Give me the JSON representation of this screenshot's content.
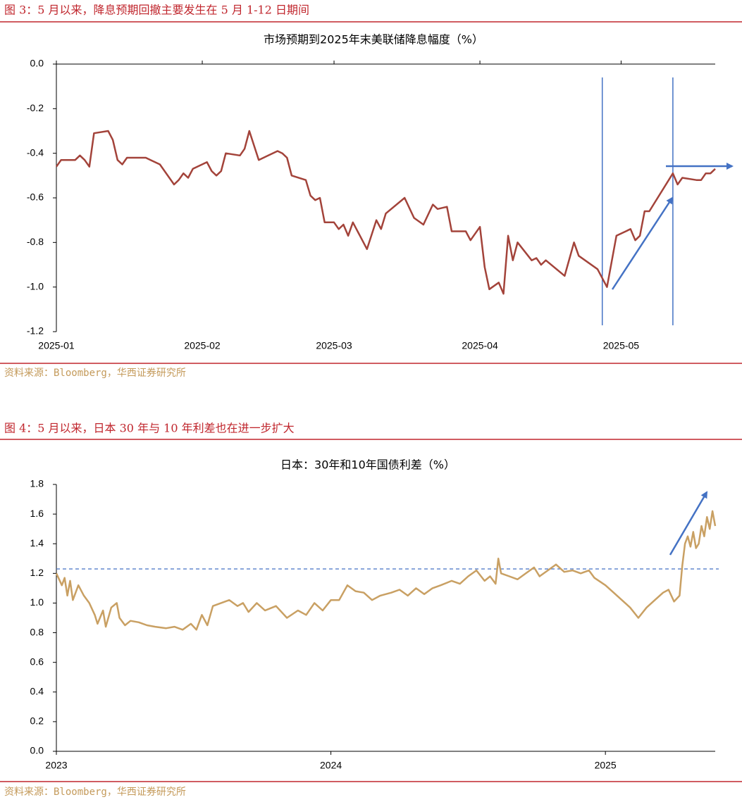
{
  "chart_data": [
    {
      "type": "line",
      "figure_title": "图 3：5 月以来，降息预期回撤主要发生在 5 月 1-12 日期间",
      "title": "市场预期到2025年末美联储降息幅度（%）",
      "source": "资料来源：Bloomberg，华西证券研究所",
      "color": "#a3433a",
      "x": [
        0,
        1,
        4,
        5,
        6,
        7,
        8,
        11,
        12,
        13,
        14,
        15,
        19,
        20,
        22,
        25,
        26,
        27,
        28,
        29,
        32,
        33,
        34,
        35,
        36,
        39,
        40,
        41,
        43,
        47,
        48,
        49,
        50,
        53,
        54,
        55,
        56,
        57,
        59,
        60,
        61,
        62,
        63,
        66,
        68,
        69,
        70,
        74,
        76,
        78,
        80,
        81,
        83,
        84,
        87,
        88,
        90,
        91,
        92,
        94,
        95,
        96,
        97,
        98,
        101,
        102,
        103,
        104,
        108,
        110,
        111,
        115,
        117,
        119,
        122,
        123,
        124,
        125,
        126,
        131,
        132,
        133,
        136,
        137,
        138,
        139,
        140
      ],
      "values": [
        -0.46,
        -0.43,
        -0.43,
        -0.41,
        -0.43,
        -0.46,
        -0.31,
        -0.3,
        -0.34,
        -0.43,
        -0.45,
        -0.42,
        -0.42,
        -0.43,
        -0.45,
        -0.54,
        -0.52,
        -0.49,
        -0.51,
        -0.47,
        -0.44,
        -0.48,
        -0.5,
        -0.48,
        -0.4,
        -0.41,
        -0.38,
        -0.3,
        -0.43,
        -0.39,
        -0.4,
        -0.42,
        -0.5,
        -0.52,
        -0.59,
        -0.61,
        -0.6,
        -0.71,
        -0.71,
        -0.74,
        -0.72,
        -0.77,
        -0.71,
        -0.83,
        -0.7,
        -0.74,
        -0.67,
        -0.6,
        -0.69,
        -0.72,
        -0.63,
        -0.65,
        -0.64,
        -0.75,
        -0.75,
        -0.79,
        -0.73,
        -0.91,
        -1.01,
        -0.98,
        -1.03,
        -0.77,
        -0.88,
        -0.8,
        -0.88,
        -0.87,
        -0.9,
        -0.88,
        -0.95,
        -0.8,
        -0.86,
        -0.92,
        -1.0,
        -0.77,
        -0.74,
        -0.79,
        -0.77,
        -0.66,
        -0.66,
        -0.49,
        -0.54,
        -0.51,
        -0.52,
        -0.52,
        -0.49,
        -0.49,
        -0.47
      ],
      "xlim": [
        0,
        140
      ],
      "xticks": [
        {
          "value": 0,
          "label": "2025-01"
        },
        {
          "value": 31,
          "label": "2025-02"
        },
        {
          "value": 59,
          "label": "2025-03"
        },
        {
          "value": 90,
          "label": "2025-04"
        },
        {
          "value": 120,
          "label": "2025-05"
        }
      ],
      "ylim": [
        -1.2,
        0
      ],
      "yticks": [
        {
          "value": 0,
          "label": "0.0"
        },
        {
          "value": -0.2,
          "label": "-0.2"
        },
        {
          "value": -0.4,
          "label": "-0.4"
        },
        {
          "value": -0.6,
          "label": "-0.6"
        },
        {
          "value": -0.8,
          "label": "-0.8"
        },
        {
          "value": -1,
          "label": "-1.0"
        },
        {
          "value": -1.2,
          "label": "-1.2"
        }
      ],
      "vlines": [
        116,
        131
      ],
      "vline_color": "#4472c4"
    },
    {
      "type": "line",
      "figure_title": "图 4：5 月以来，日本 30 年与 10 年利差也在进一步扩大",
      "title": "日本：30年和10年国债利差（%）",
      "source": "资料来源：Bloomberg，华西证券研究所",
      "color": "#c9a063",
      "x": [
        2023.0,
        2023.02,
        2023.03,
        2023.04,
        2023.05,
        2023.06,
        2023.08,
        2023.1,
        2023.12,
        2023.14,
        2023.15,
        2023.17,
        2023.18,
        2023.2,
        2023.22,
        2023.23,
        2023.25,
        2023.27,
        2023.3,
        2023.33,
        2023.36,
        2023.4,
        2023.43,
        2023.46,
        2023.49,
        2023.51,
        2023.53,
        2023.55,
        2023.57,
        2023.6,
        2023.63,
        2023.66,
        2023.68,
        2023.7,
        2023.73,
        2023.76,
        2023.8,
        2023.84,
        2023.88,
        2023.91,
        2023.94,
        2023.97,
        2024.0,
        2024.03,
        2024.06,
        2024.09,
        2024.12,
        2024.15,
        2024.18,
        2024.22,
        2024.25,
        2024.28,
        2024.31,
        2024.34,
        2024.37,
        2024.4,
        2024.44,
        2024.47,
        2024.5,
        2024.53,
        2024.56,
        2024.58,
        2024.6,
        2024.61,
        2024.62,
        2024.65,
        2024.68,
        2024.71,
        2024.74,
        2024.76,
        2024.79,
        2024.82,
        2024.85,
        2024.88,
        2024.91,
        2024.94,
        2024.96,
        2025.0,
        2025.03,
        2025.06,
        2025.09,
        2025.12,
        2025.15,
        2025.18,
        2025.21,
        2025.23,
        2025.25,
        2025.27,
        2025.28,
        2025.29,
        2025.3,
        2025.31,
        2025.32,
        2025.33,
        2025.34,
        2025.35,
        2025.36,
        2025.37,
        2025.38,
        2025.39,
        2025.4
      ],
      "values": [
        1.2,
        1.12,
        1.17,
        1.05,
        1.15,
        1.02,
        1.12,
        1.05,
        1.0,
        0.92,
        0.86,
        0.95,
        0.84,
        0.97,
        1.0,
        0.9,
        0.85,
        0.88,
        0.87,
        0.85,
        0.84,
        0.83,
        0.84,
        0.82,
        0.86,
        0.82,
        0.92,
        0.85,
        0.98,
        1.0,
        1.02,
        0.98,
        1.0,
        0.94,
        1.0,
        0.95,
        0.98,
        0.9,
        0.95,
        0.92,
        1.0,
        0.95,
        1.02,
        1.02,
        1.12,
        1.08,
        1.07,
        1.02,
        1.05,
        1.07,
        1.09,
        1.05,
        1.1,
        1.06,
        1.1,
        1.12,
        1.15,
        1.13,
        1.18,
        1.22,
        1.15,
        1.18,
        1.13,
        1.3,
        1.2,
        1.18,
        1.16,
        1.2,
        1.24,
        1.18,
        1.22,
        1.26,
        1.21,
        1.22,
        1.2,
        1.22,
        1.17,
        1.12,
        1.07,
        1.02,
        0.97,
        0.9,
        0.97,
        1.02,
        1.07,
        1.09,
        1.01,
        1.05,
        1.25,
        1.4,
        1.45,
        1.38,
        1.48,
        1.37,
        1.4,
        1.52,
        1.45,
        1.58,
        1.5,
        1.62,
        1.52
      ],
      "xlim": [
        2023,
        2025.4
      ],
      "xticks": [
        2023,
        2024,
        2025
      ],
      "ylim": [
        0,
        1.8
      ],
      "yticks": [
        {
          "value": 0,
          "label": "0.0"
        },
        {
          "value": 0.2,
          "label": "0.2"
        },
        {
          "value": 0.4,
          "label": "0.4"
        },
        {
          "value": 0.6,
          "label": "0.6"
        },
        {
          "value": 0.8,
          "label": "0.8"
        },
        {
          "value": 1,
          "label": "1.0"
        },
        {
          "value": 1.2,
          "label": "1.2"
        },
        {
          "value": 1.4,
          "label": "1.4"
        },
        {
          "value": 1.6,
          "label": "1.6"
        },
        {
          "value": 1.8,
          "label": "1.8"
        }
      ],
      "hline": 1.23,
      "hline_color": "#4472c4"
    }
  ]
}
